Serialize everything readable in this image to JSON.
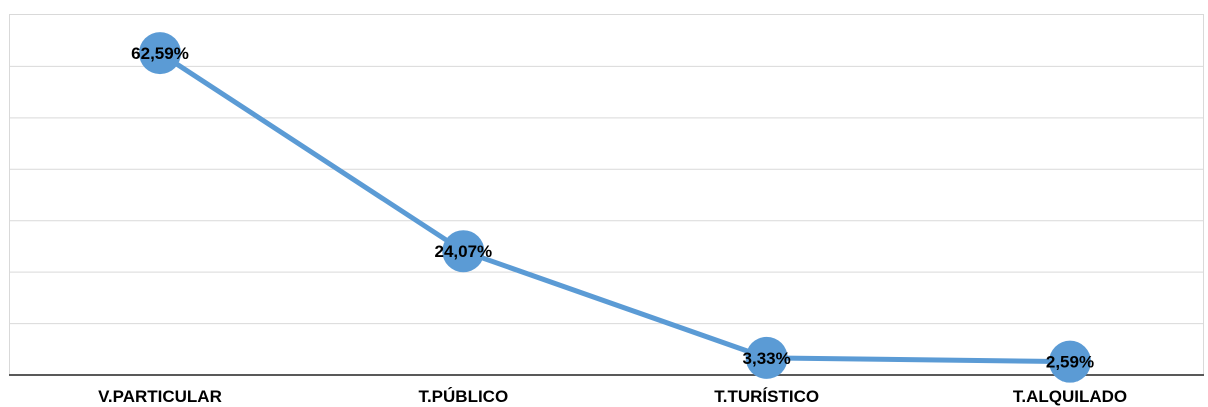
{
  "chart_data": {
    "type": "line",
    "categories": [
      "V.PARTICULAR",
      "T.PÚBLICO",
      "T.TURÍSTICO",
      "T.ALQUILADO"
    ],
    "series": [
      {
        "values": [
          62.59,
          24.07,
          3.33,
          2.59
        ],
        "labels": [
          "62,59%",
          "24,07%",
          "3,33%",
          "2,59%"
        ],
        "color": "#5b9bd5"
      }
    ],
    "ylim": [
      0,
      70
    ],
    "grid": true,
    "gridline_color": "#d9d9d9",
    "axis_color": "#595959",
    "marker": "circle",
    "legend": "none"
  }
}
